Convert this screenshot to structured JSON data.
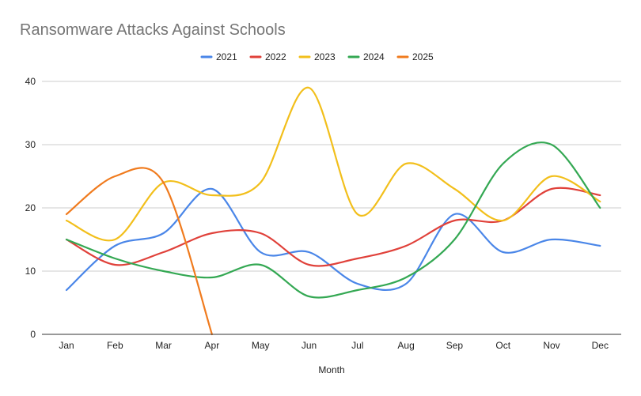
{
  "chart_data": {
    "type": "line",
    "title": "Ransomware Attacks Against Schools",
    "xlabel": "Month",
    "ylabel": "",
    "categories": [
      "Jan",
      "Feb",
      "Mar",
      "Apr",
      "May",
      "Jun",
      "Jul",
      "Aug",
      "Sep",
      "Oct",
      "Nov",
      "Dec"
    ],
    "ylim": [
      0,
      40
    ],
    "yticks": [
      0,
      10,
      20,
      30,
      40
    ],
    "grid": true,
    "legend_position": "top",
    "series": [
      {
        "name": "2021",
        "color": "#4a86e8",
        "values": [
          7,
          14,
          16,
          23,
          13,
          13,
          8,
          8,
          19,
          13,
          15,
          14
        ]
      },
      {
        "name": "2022",
        "color": "#e0413a",
        "values": [
          15,
          11,
          13,
          16,
          16,
          11,
          12,
          14,
          18,
          18,
          23,
          22
        ]
      },
      {
        "name": "2023",
        "color": "#f2bf1b",
        "values": [
          18,
          15,
          24,
          22,
          24,
          39,
          19,
          27,
          23,
          18,
          25,
          21
        ]
      },
      {
        "name": "2024",
        "color": "#34a853",
        "values": [
          15,
          12,
          10,
          9,
          11,
          6,
          7,
          9,
          15,
          27,
          30,
          20
        ]
      },
      {
        "name": "2025",
        "color": "#f07b1e",
        "values": [
          19,
          25,
          24,
          0,
          null,
          null,
          null,
          null,
          null,
          null,
          null,
          null
        ]
      }
    ]
  }
}
